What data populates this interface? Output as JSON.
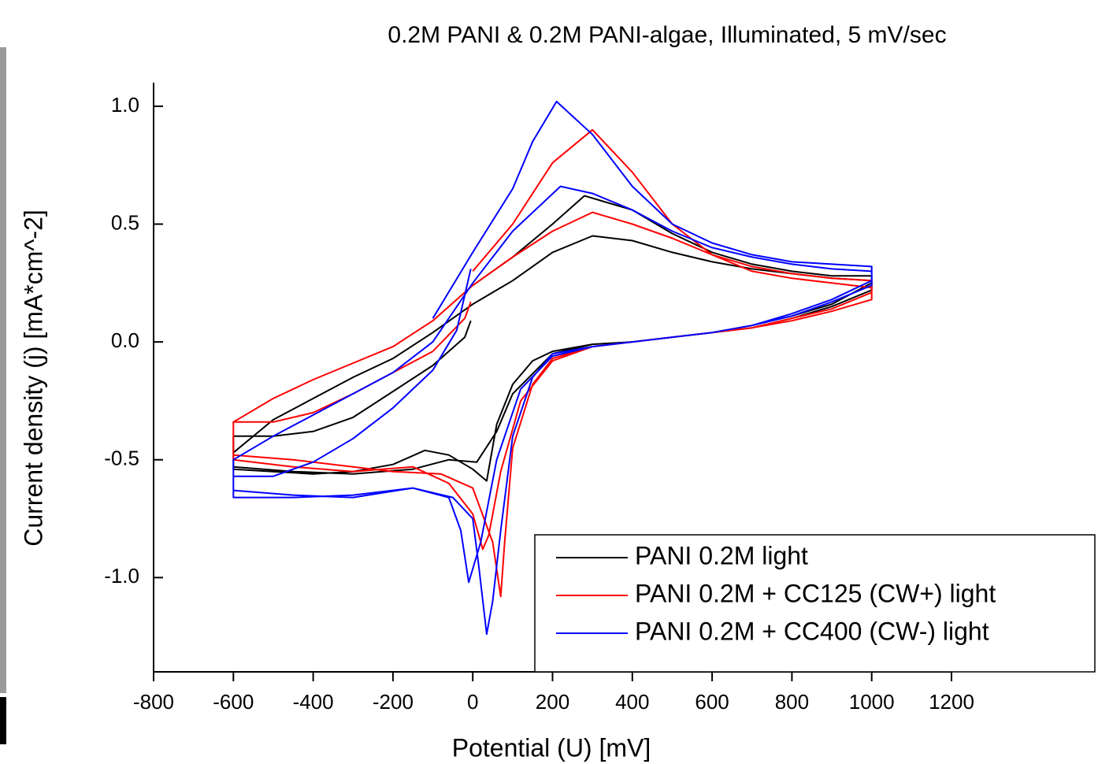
{
  "chart_data": {
    "type": "line",
    "title": "0.2M PANI & 0.2M PANI-algae, Illuminated, 5 mV/sec",
    "x_label": "Potential (U) [mV]",
    "y_label": "Current density (j) [mA*cm^-2]",
    "xlim": [
      -800,
      1200
    ],
    "xticks": [
      -800,
      -600,
      -400,
      -200,
      0,
      200,
      400,
      600,
      800,
      1000,
      1200
    ],
    "ylim": [
      -1.4,
      1.1
    ],
    "yticks": [
      {
        "value": -1,
        "label": "-1.0"
      },
      {
        "value": -0.5,
        "label": "-0.5"
      },
      {
        "value": 0,
        "label": "0.0"
      },
      {
        "value": 0.5,
        "label": "0.5"
      },
      {
        "value": 1,
        "label": "1.0"
      }
    ],
    "legend": "lower right",
    "series": [
      {
        "name": "PANI 0.2M light",
        "color": "#000000",
        "x": [
          0,
          100,
          200,
          280,
          400,
          500,
          600,
          700,
          800,
          900,
          1000,
          1000,
          900,
          800,
          700,
          600,
          500,
          400,
          300,
          200,
          150,
          100,
          60,
          35,
          0,
          -60,
          -120,
          -200,
          -300,
          -400,
          -500,
          -600,
          -600,
          -500,
          -400,
          -300,
          -200,
          -100,
          0,
          100,
          200,
          300,
          400,
          500,
          600,
          700,
          800,
          900,
          1000,
          1000,
          900,
          800,
          700,
          600,
          500,
          400,
          300,
          200,
          100,
          60,
          10,
          -60,
          -150,
          -300,
          -450,
          -600,
          -600,
          -500,
          -400,
          -300,
          -200,
          -100,
          -20,
          -5
        ],
        "values": [
          0.24,
          0.36,
          0.5,
          0.62,
          0.56,
          0.46,
          0.38,
          0.33,
          0.3,
          0.28,
          0.28,
          0.25,
          0.16,
          0.11,
          0.07,
          0.04,
          0.02,
          0,
          -0.01,
          -0.04,
          -0.08,
          -0.18,
          -0.35,
          -0.59,
          -0.54,
          -0.48,
          -0.46,
          -0.52,
          -0.55,
          -0.56,
          -0.55,
          -0.54,
          -0.47,
          -0.33,
          -0.24,
          -0.15,
          -0.07,
          0.04,
          0.16,
          0.26,
          0.38,
          0.45,
          0.43,
          0.38,
          0.34,
          0.31,
          0.29,
          0.27,
          0.26,
          0.22,
          0.15,
          0.1,
          0.06,
          0.04,
          0.02,
          0,
          -0.01,
          -0.05,
          -0.22,
          -0.38,
          -0.51,
          -0.5,
          -0.54,
          -0.56,
          -0.55,
          -0.53,
          -0.4,
          -0.4,
          -0.38,
          -0.32,
          -0.21,
          -0.1,
          0.02,
          0.09
        ]
      },
      {
        "name": "PANI 0.2M + CC125 (CW+) light",
        "color": "#ff0000",
        "x": [
          0,
          100,
          200,
          300,
          400,
          500,
          600,
          700,
          800,
          900,
          1000,
          1000,
          900,
          800,
          700,
          600,
          500,
          400,
          300,
          200,
          150,
          100,
          80,
          70,
          50,
          0,
          -80,
          -200,
          -300,
          -450,
          -600,
          -600,
          -500,
          -400,
          -300,
          -200,
          -100,
          0,
          100,
          200,
          300,
          400,
          500,
          600,
          700,
          800,
          900,
          1000,
          1000,
          900,
          800,
          700,
          600,
          500,
          400,
          300,
          200,
          120,
          70,
          40,
          25,
          0,
          -60,
          -150,
          -300,
          -450,
          -600,
          -600,
          -500,
          -400,
          -300,
          -200,
          -100,
          -20,
          -5
        ],
        "values": [
          0.3,
          0.5,
          0.76,
          0.9,
          0.72,
          0.5,
          0.37,
          0.3,
          0.27,
          0.25,
          0.23,
          0.18,
          0.13,
          0.09,
          0.06,
          0.04,
          0.02,
          0,
          -0.02,
          -0.07,
          -0.18,
          -0.45,
          -0.85,
          -1.08,
          -0.85,
          -0.62,
          -0.56,
          -0.55,
          -0.53,
          -0.5,
          -0.48,
          -0.34,
          -0.24,
          -0.16,
          -0.09,
          -0.02,
          0.09,
          0.24,
          0.36,
          0.47,
          0.55,
          0.5,
          0.44,
          0.37,
          0.32,
          0.29,
          0.27,
          0.26,
          0.21,
          0.14,
          0.1,
          0.06,
          0.04,
          0.02,
          0,
          -0.02,
          -0.08,
          -0.25,
          -0.55,
          -0.82,
          -0.88,
          -0.73,
          -0.6,
          -0.53,
          -0.55,
          -0.53,
          -0.5,
          -0.34,
          -0.34,
          -0.3,
          -0.22,
          -0.13,
          -0.04,
          0.1,
          0.17
        ]
      },
      {
        "name": "PANI 0.2M + CC400 (CW-) light",
        "color": "#0000ff",
        "x": [
          -100,
          0,
          100,
          150,
          210,
          300,
          400,
          500,
          600,
          700,
          800,
          900,
          1000,
          1000,
          900,
          800,
          700,
          600,
          500,
          400,
          300,
          200,
          150,
          100,
          70,
          50,
          35,
          15,
          0,
          -50,
          -150,
          -300,
          -450,
          -600,
          -600,
          -500,
          -400,
          -300,
          -200,
          -100,
          0,
          100,
          220,
          300,
          400,
          500,
          600,
          700,
          800,
          900,
          1000,
          1000,
          900,
          800,
          700,
          600,
          500,
          400,
          300,
          200,
          120,
          60,
          20,
          -10,
          -30,
          -60,
          -150,
          -300,
          -450,
          -600,
          -600,
          -500,
          -400,
          -300,
          -200,
          -100,
          -40,
          -5
        ],
        "values": [
          0.1,
          0.38,
          0.65,
          0.85,
          1.02,
          0.88,
          0.66,
          0.5,
          0.42,
          0.37,
          0.34,
          0.33,
          0.32,
          0.26,
          0.18,
          0.12,
          0.07,
          0.04,
          0.02,
          0,
          -0.02,
          -0.05,
          -0.15,
          -0.4,
          -0.8,
          -1.1,
          -1.24,
          -0.95,
          -0.75,
          -0.66,
          -0.62,
          -0.66,
          -0.65,
          -0.63,
          -0.5,
          -0.4,
          -0.31,
          -0.22,
          -0.13,
          0,
          0.25,
          0.47,
          0.66,
          0.63,
          0.56,
          0.47,
          0.4,
          0.36,
          0.33,
          0.31,
          0.3,
          0.24,
          0.17,
          0.11,
          0.07,
          0.04,
          0.02,
          0,
          -0.02,
          -0.06,
          -0.2,
          -0.5,
          -0.85,
          -1.02,
          -0.8,
          -0.66,
          -0.62,
          -0.65,
          -0.66,
          -0.66,
          -0.57,
          -0.57,
          -0.51,
          -0.41,
          -0.28,
          -0.12,
          0.05,
          0.31
        ]
      }
    ]
  }
}
